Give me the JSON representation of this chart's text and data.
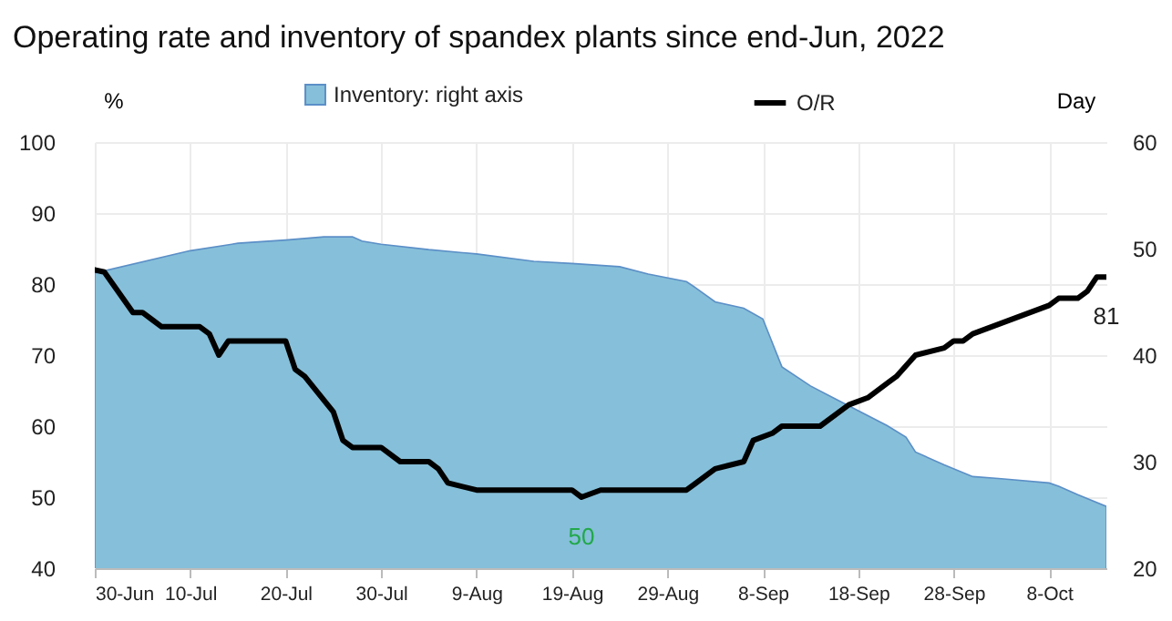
{
  "chart_data": {
    "type": "line",
    "title": "Operating rate and inventory of spandex plants since end-Jun, 2022",
    "ylabel": "%",
    "y2label": "Day",
    "xlim": [
      "2022-06-30",
      "2022-10-14"
    ],
    "xticks": [
      {
        "value": "2022-06-30",
        "label": "30-Jun"
      },
      {
        "value": "2022-07-10",
        "label": "10-Jul"
      },
      {
        "value": "2022-07-20",
        "label": "20-Jul"
      },
      {
        "value": "2022-07-30",
        "label": "30-Jul"
      },
      {
        "value": "2022-08-09",
        "label": "9-Aug"
      },
      {
        "value": "2022-08-19",
        "label": "19-Aug"
      },
      {
        "value": "2022-08-29",
        "label": "29-Aug"
      },
      {
        "value": "2022-09-08",
        "label": "8-Sep"
      },
      {
        "value": "2022-09-18",
        "label": "18-Sep"
      },
      {
        "value": "2022-09-28",
        "label": "28-Sep"
      },
      {
        "value": "2022-10-08",
        "label": "8-Oct"
      }
    ],
    "ylim": [
      40,
      100
    ],
    "yticks": [
      40,
      50,
      60,
      70,
      80,
      90,
      100
    ],
    "y2lim": [
      20,
      60
    ],
    "y2ticks": [
      20,
      30,
      40,
      50,
      60
    ],
    "grid": true,
    "legend": "top",
    "series": [
      {
        "name": "Inventory: right axis",
        "type": "area",
        "axis": "y2",
        "color": "#86bfd9",
        "x": [
          "2022-06-30",
          "2022-07-10",
          "2022-07-15",
          "2022-07-20",
          "2022-07-24",
          "2022-07-27",
          "2022-07-28",
          "2022-07-30",
          "2022-08-04",
          "2022-08-09",
          "2022-08-15",
          "2022-08-19",
          "2022-08-24",
          "2022-08-27",
          "2022-08-31",
          "2022-09-01",
          "2022-09-03",
          "2022-09-06",
          "2022-09-08",
          "2022-09-10",
          "2022-09-13",
          "2022-09-16",
          "2022-09-21",
          "2022-09-23",
          "2022-09-24",
          "2022-09-27",
          "2022-09-30",
          "2022-10-03",
          "2022-10-08",
          "2022-10-09",
          "2022-10-11",
          "2022-10-14"
        ],
        "values": [
          47.7,
          49.8,
          50.5,
          50.8,
          51.1,
          51.1,
          50.7,
          50.4,
          49.9,
          49.5,
          48.8,
          48.6,
          48.3,
          47.6,
          46.9,
          46.3,
          45,
          44.4,
          43.4,
          38.9,
          37.1,
          35.7,
          33.4,
          32.3,
          30.9,
          29.7,
          28.6,
          28.4,
          28,
          27.7,
          26.9,
          25.8
        ]
      },
      {
        "name": "O/R",
        "color": "#000000",
        "x": [
          "2022-06-30",
          "2022-07-01",
          "2022-07-04",
          "2022-07-05",
          "2022-07-06",
          "2022-07-07",
          "2022-07-11",
          "2022-07-12",
          "2022-07-13",
          "2022-07-14",
          "2022-07-20",
          "2022-07-21",
          "2022-07-22",
          "2022-07-25",
          "2022-07-26",
          "2022-07-27",
          "2022-07-30",
          "2022-08-01",
          "2022-08-04",
          "2022-08-05",
          "2022-08-06",
          "2022-08-09",
          "2022-08-19",
          "2022-08-20",
          "2022-08-22",
          "2022-08-31",
          "2022-09-03",
          "2022-09-06",
          "2022-09-07",
          "2022-09-09",
          "2022-09-10",
          "2022-09-14",
          "2022-09-17",
          "2022-09-19",
          "2022-09-21",
          "2022-09-22",
          "2022-09-24",
          "2022-09-27",
          "2022-09-28",
          "2022-09-29",
          "2022-09-30",
          "2022-10-08",
          "2022-10-09",
          "2022-10-11",
          "2022-10-12",
          "2022-10-13",
          "2022-10-14"
        ],
        "values": [
          82,
          81.7,
          76,
          76,
          75,
          74,
          74,
          73,
          70,
          72,
          72,
          68,
          67,
          62,
          58,
          57,
          57,
          55,
          55,
          54,
          52,
          51,
          51,
          50,
          51,
          51,
          54,
          55,
          58,
          59,
          60,
          60,
          63,
          64,
          66,
          67,
          70,
          71,
          72,
          72,
          73,
          77,
          78,
          78,
          79,
          81,
          81
        ]
      }
    ],
    "annotations": [
      {
        "text": "81",
        "x": "2022-10-14",
        "y": 81
      },
      {
        "text": "50",
        "x": "2022-08-20",
        "y": 50
      }
    ]
  }
}
